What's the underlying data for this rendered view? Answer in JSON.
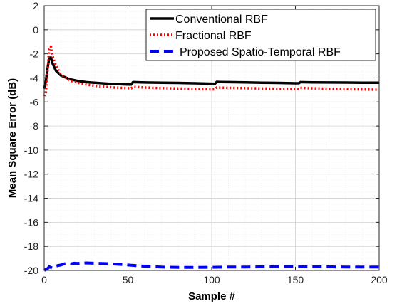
{
  "chart_data": {
    "type": "line",
    "title": "",
    "xlabel": "Sample #",
    "ylabel": "Mean Square Error (dB)",
    "xlim": [
      0,
      200
    ],
    "ylim": [
      -20,
      2
    ],
    "xticks": [
      0,
      50,
      100,
      150,
      200
    ],
    "yticks": [
      2,
      0,
      -2,
      -4,
      -6,
      -8,
      -10,
      -12,
      -14,
      -16,
      -18,
      -20
    ],
    "grid": "major and minor",
    "legend_position": "top-right",
    "series": [
      {
        "name": "Conventional RBF",
        "color": "#000000",
        "style": "solid",
        "x": [
          0,
          1,
          2,
          3,
          4,
          5,
          7,
          10,
          15,
          20,
          25,
          30,
          35,
          40,
          45,
          50,
          52,
          53,
          55,
          60,
          70,
          80,
          90,
          100,
          102,
          103,
          105,
          110,
          120,
          130,
          140,
          150,
          152,
          153,
          155,
          160,
          170,
          180,
          190,
          200
        ],
        "y": [
          -4.9,
          -4.3,
          -3.2,
          -2.4,
          -2.3,
          -2.8,
          -3.4,
          -3.8,
          -4.1,
          -4.25,
          -4.35,
          -4.4,
          -4.45,
          -4.5,
          -4.52,
          -4.55,
          -4.55,
          -4.35,
          -4.36,
          -4.38,
          -4.4,
          -4.42,
          -4.45,
          -4.48,
          -4.48,
          -4.33,
          -4.34,
          -4.35,
          -4.37,
          -4.4,
          -4.42,
          -4.45,
          -4.45,
          -4.35,
          -4.36,
          -4.37,
          -4.38,
          -4.39,
          -4.4,
          -4.4
        ]
      },
      {
        "name": "Fractional RBF",
        "color": "#ff0000",
        "style": "dotted",
        "x": [
          0,
          1,
          2,
          3,
          4,
          5,
          7,
          10,
          15,
          20,
          25,
          30,
          35,
          40,
          45,
          50,
          52,
          53,
          55,
          60,
          70,
          80,
          90,
          100,
          102,
          103,
          105,
          110,
          120,
          130,
          140,
          150,
          152,
          153,
          155,
          160,
          170,
          180,
          190,
          200
        ],
        "y": [
          -5.5,
          -5.2,
          -3.5,
          -1.6,
          -1.4,
          -2.2,
          -3.0,
          -3.7,
          -4.2,
          -4.4,
          -4.55,
          -4.65,
          -4.72,
          -4.78,
          -4.82,
          -4.85,
          -4.86,
          -4.74,
          -4.76,
          -4.8,
          -4.85,
          -4.88,
          -4.91,
          -4.95,
          -4.95,
          -4.8,
          -4.81,
          -4.83,
          -4.85,
          -4.88,
          -4.9,
          -4.93,
          -4.93,
          -4.82,
          -4.84,
          -4.86,
          -4.9,
          -4.93,
          -4.96,
          -4.98
        ]
      },
      {
        "name": "Proposed Spatio-Temporal RBF",
        "color": "#0000ff",
        "style": "dashed",
        "x": [
          0,
          2,
          3,
          4,
          5,
          6,
          8,
          10,
          12,
          14,
          16,
          18,
          20,
          25,
          30,
          40,
          50,
          60,
          70,
          80,
          90,
          100,
          110,
          120,
          130,
          140,
          150,
          160,
          170,
          180,
          190,
          200
        ],
        "y": [
          -20.0,
          -19.85,
          -19.7,
          -19.75,
          -19.8,
          -19.7,
          -19.6,
          -19.55,
          -19.45,
          -19.4,
          -19.45,
          -19.4,
          -19.42,
          -19.38,
          -19.4,
          -19.45,
          -19.55,
          -19.65,
          -19.72,
          -19.75,
          -19.75,
          -19.74,
          -19.72,
          -19.72,
          -19.7,
          -19.68,
          -19.68,
          -19.7,
          -19.7,
          -19.72,
          -19.72,
          -19.72
        ]
      }
    ]
  }
}
